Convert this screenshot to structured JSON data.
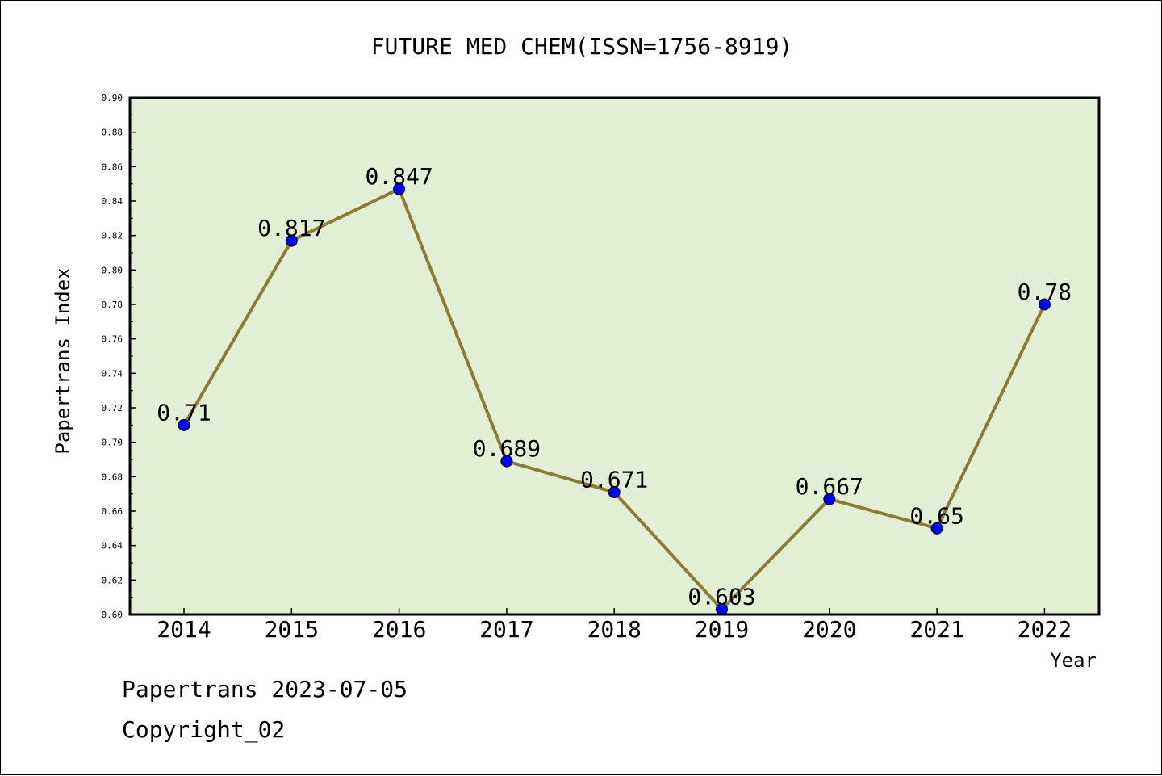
{
  "chart_data": {
    "type": "line",
    "title": "FUTURE MED CHEM(ISSN=1756-8919)",
    "xlabel": "Year",
    "ylabel": "Papertrans Index",
    "categories": [
      "2014",
      "2015",
      "2016",
      "2017",
      "2018",
      "2019",
      "2020",
      "2021",
      "2022"
    ],
    "series": [
      {
        "values": [
          0.71,
          0.817,
          0.847,
          0.689,
          0.671,
          0.603,
          0.667,
          0.65,
          0.78
        ],
        "labels": [
          "0.71",
          "0.817",
          "0.847",
          "0.689",
          "0.671",
          "0.603",
          "0.667",
          "0.65",
          "0.78"
        ]
      }
    ],
    "ylim": [
      0.6,
      0.9
    ],
    "yticks": [
      "0.60",
      "0.62",
      "0.64",
      "0.66",
      "0.68",
      "0.70",
      "0.72",
      "0.74",
      "0.76",
      "0.78",
      "0.80",
      "0.82",
      "0.84",
      "0.86",
      "0.88",
      "0.90"
    ],
    "grid": false,
    "colors": {
      "plot_background": "#e2efd5",
      "line": "#8c7d36",
      "marker": "#0000ff"
    }
  },
  "footer": {
    "line1": "Papertrans 2023-07-05",
    "line2": "Copyright_02"
  }
}
